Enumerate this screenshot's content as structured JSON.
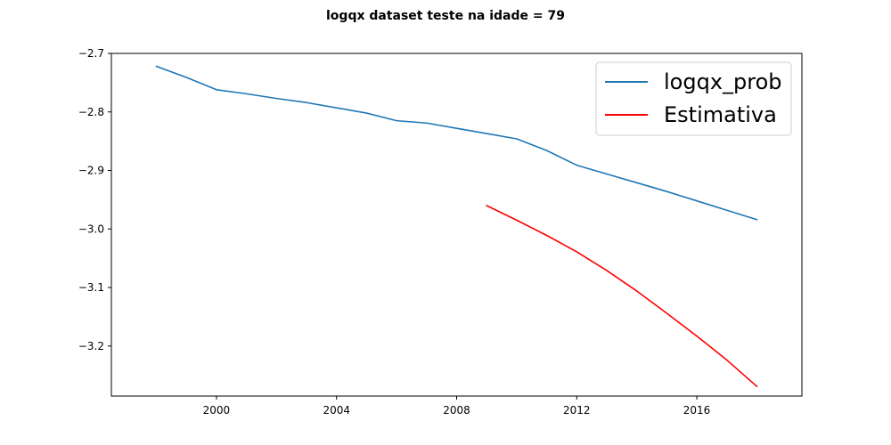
{
  "chart_data": {
    "type": "line",
    "title": "logqx dataset teste na idade = 79",
    "xlabel": "",
    "ylabel": "",
    "xlim": [
      1996.5,
      2019.5
    ],
    "ylim": [
      -3.2855,
      -2.7
    ],
    "x_ticks": [
      2000,
      2004,
      2008,
      2012,
      2016
    ],
    "y_ticks": [
      -2.7,
      -2.8,
      -2.9,
      -3.0,
      -3.1,
      -3.2
    ],
    "x_tick_labels": [
      "2000",
      "2004",
      "2008",
      "2012",
      "2016"
    ],
    "y_tick_labels": [
      "−2.7",
      "−2.8",
      "−2.9",
      "−3.0",
      "−3.1",
      "−3.2"
    ],
    "grid": false,
    "legend_position": "top-right",
    "series": [
      {
        "name": "logqx_prob",
        "color": "#1f77b4",
        "x": [
          1998,
          1999,
          2000,
          2001,
          2002,
          2003,
          2004,
          2005,
          2006,
          2007,
          2008,
          2009,
          2010,
          2011,
          2012,
          2013,
          2014,
          2015,
          2016,
          2017,
          2018
        ],
        "y": [
          -2.722,
          -2.741,
          -2.762,
          -2.769,
          -2.777,
          -2.784,
          -2.793,
          -2.802,
          -2.815,
          -2.819,
          -2.828,
          -2.837,
          -2.846,
          -2.866,
          -2.891,
          -2.906,
          -2.921,
          -2.936,
          -2.952,
          -2.968,
          -2.984
        ]
      },
      {
        "name": "Estimativa",
        "color": "#ff0000",
        "x": [
          2009,
          2010,
          2011,
          2012,
          2013,
          2014,
          2015,
          2016,
          2017,
          2018
        ],
        "y": [
          -2.96,
          -2.985,
          -3.011,
          -3.039,
          -3.071,
          -3.106,
          -3.144,
          -3.183,
          -3.224,
          -3.269
        ]
      }
    ]
  }
}
